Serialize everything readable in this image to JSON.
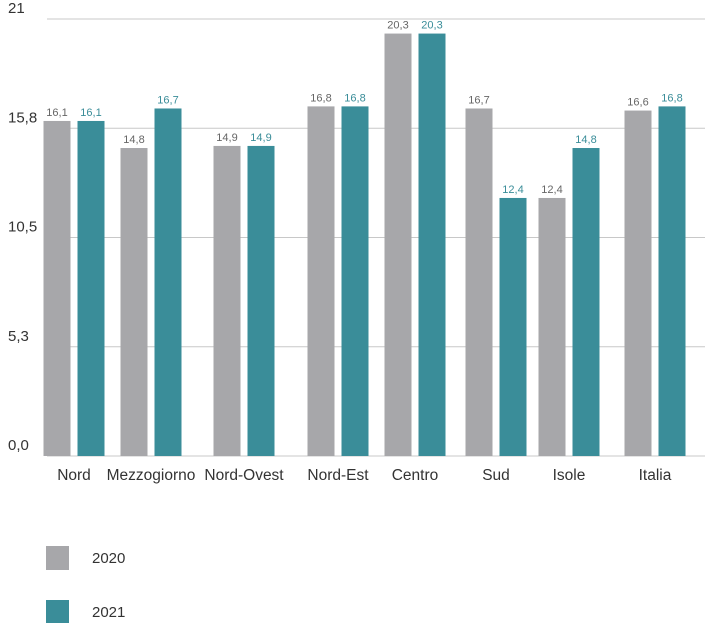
{
  "chart_data": {
    "type": "bar",
    "categories": [
      "Nord",
      "Mezzogiorno",
      "Nord-Ovest",
      "Nord-Est",
      "Centro",
      "Sud",
      "Isole",
      "Italia"
    ],
    "series": [
      {
        "name": "2020",
        "values": [
          16.1,
          14.8,
          14.9,
          16.8,
          20.3,
          16.7,
          12.4,
          16.6
        ],
        "labels": [
          "16,1",
          "14,8",
          "14,9",
          "16,8",
          "20,3",
          "16,7",
          "12,4",
          "16,6"
        ],
        "color": "#a7a7aa",
        "label_color": "#666666"
      },
      {
        "name": "2021",
        "values": [
          16.1,
          16.7,
          14.9,
          16.8,
          20.3,
          12.4,
          14.8,
          16.8
        ],
        "labels": [
          "16,1",
          "16,7",
          "14,9",
          "16,8",
          "20,3",
          "12,4",
          "14,8",
          "16,8"
        ],
        "color": "#3a8d99",
        "label_color": "#3a8d99"
      }
    ],
    "yticks": [
      {
        "value": 0,
        "label": "0,0"
      },
      {
        "value": 5.25,
        "label": "5,3"
      },
      {
        "value": 10.5,
        "label": "10,5"
      },
      {
        "value": 15.75,
        "label": "15,8"
      },
      {
        "value": 21,
        "label": "21"
      }
    ],
    "ylim": [
      0,
      21
    ],
    "grid": true,
    "legend_position": "bottom-left",
    "gridline_color": "#c8c8c8"
  }
}
